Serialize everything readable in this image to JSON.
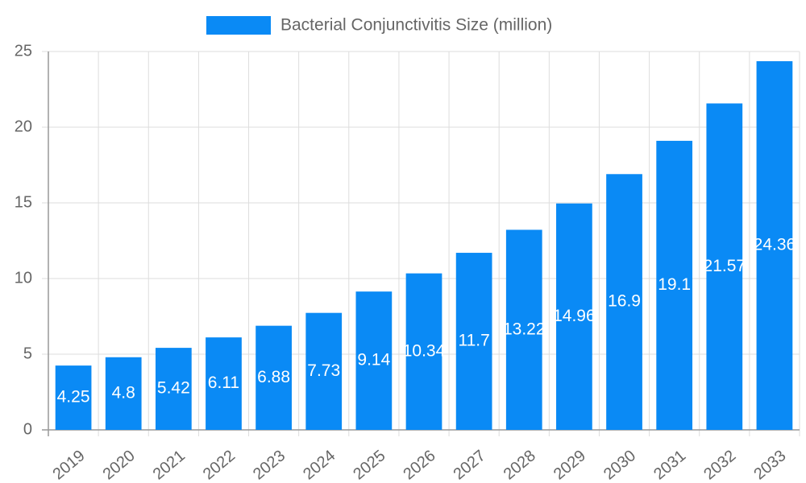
{
  "chart_data": {
    "type": "bar",
    "categories": [
      "2019",
      "2020",
      "2021",
      "2022",
      "2023",
      "2024",
      "2025",
      "2026",
      "2027",
      "2028",
      "2029",
      "2030",
      "2031",
      "2032",
      "2033"
    ],
    "series": [
      {
        "name": "Bacterial Conjunctivitis Size (million)",
        "color": "#0a8af5",
        "values": [
          4.25,
          4.8,
          5.42,
          6.11,
          6.88,
          7.73,
          9.14,
          10.34,
          11.7,
          13.22,
          14.96,
          16.9,
          19.1,
          21.57,
          24.36
        ]
      }
    ],
    "ylim": [
      0,
      25
    ],
    "yticks": [
      0,
      5,
      10,
      15,
      20,
      25
    ],
    "grid": true,
    "legend": "top"
  }
}
